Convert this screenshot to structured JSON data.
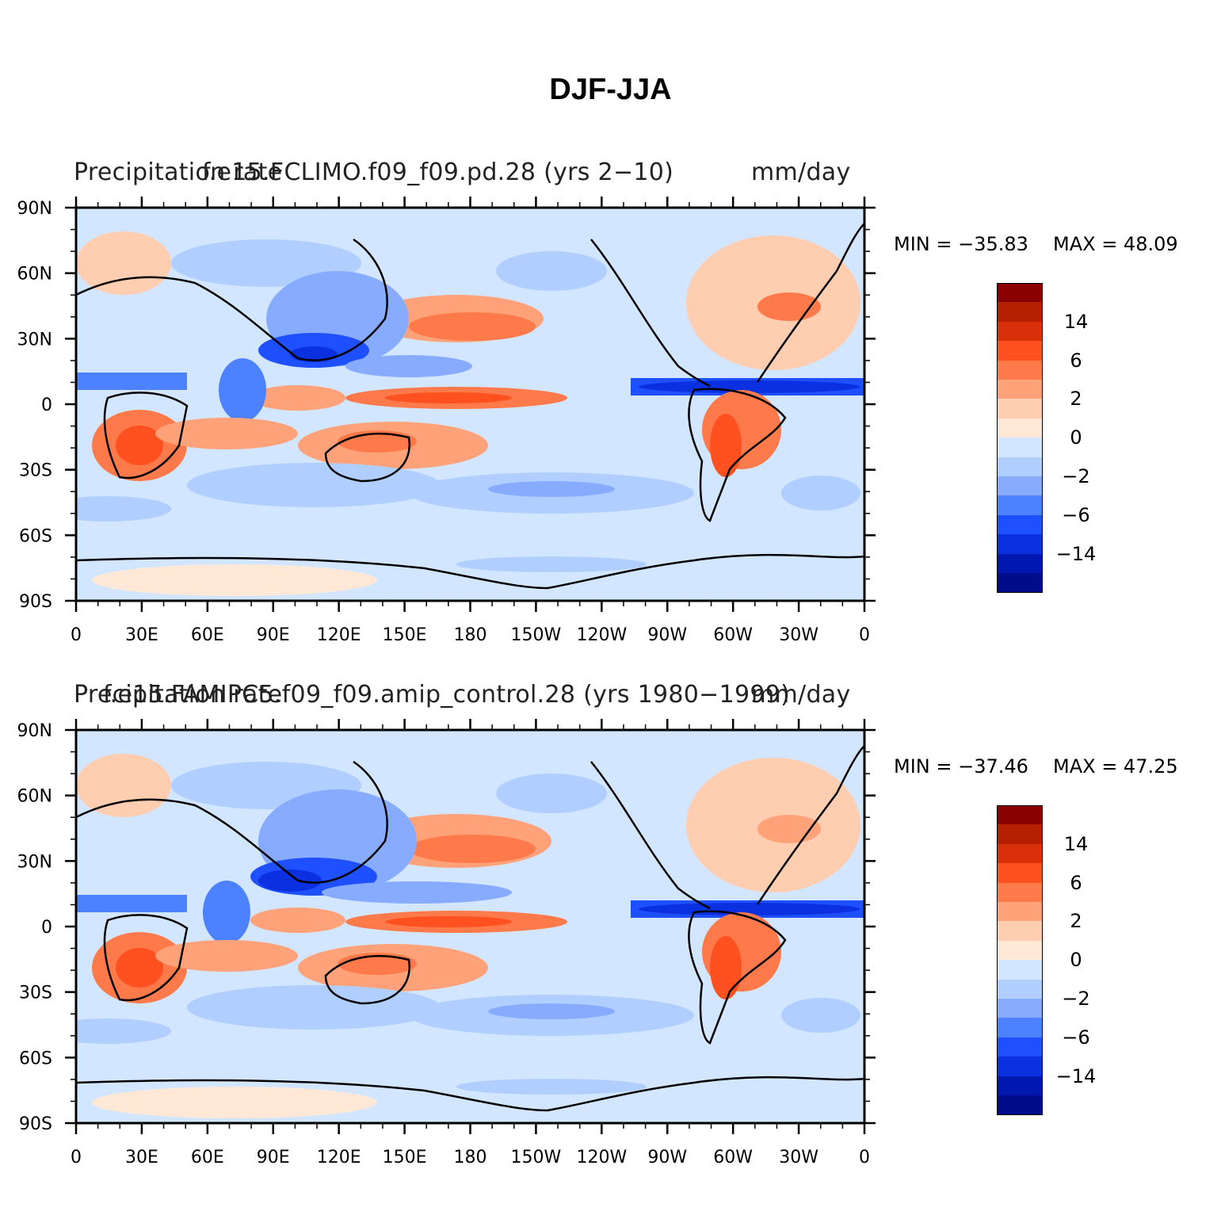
{
  "main_title": "DJF-JJA",
  "palette": [
    "#8b0000",
    "#b52000",
    "#d9300a",
    "#ff5020",
    "#ff7a4a",
    "#ffa27a",
    "#ffcdb0",
    "#ffe8d6",
    "#d3e6ff",
    "#b0ceff",
    "#87acff",
    "#4c82ff",
    "#1e50ff",
    "#0a30e0",
    "#0018b0",
    "#000c8a"
  ],
  "colorbar_labels": [
    "14",
    "6",
    "2",
    "0",
    "−2",
    "−6",
    "−14"
  ],
  "x_ticks": [
    "0",
    "30E",
    "60E",
    "90E",
    "120E",
    "150E",
    "180",
    "150W",
    "120W",
    "90W",
    "60W",
    "30W",
    "0"
  ],
  "y_ticks": [
    "90N",
    "60N",
    "30N",
    "0",
    "30S",
    "60S",
    "90S"
  ],
  "panels": [
    {
      "left_title": "Precipitation rate",
      "center_title": "f.e15.FCLIMO.f09_f09.pd.28 (yrs 2−10)",
      "right_title": "mm/day",
      "min_label": "MIN = −35.83",
      "max_label": "MAX =  48.09"
    },
    {
      "left_title": "Precipitation rate",
      "center_title": "f.e15.FAMIPC5.f09_f09.amip_control.28 (yrs 1980−1999)",
      "right_title": "mm/day",
      "min_label": "MIN = −37.46",
      "max_label": "MAX =  47.25"
    }
  ]
}
